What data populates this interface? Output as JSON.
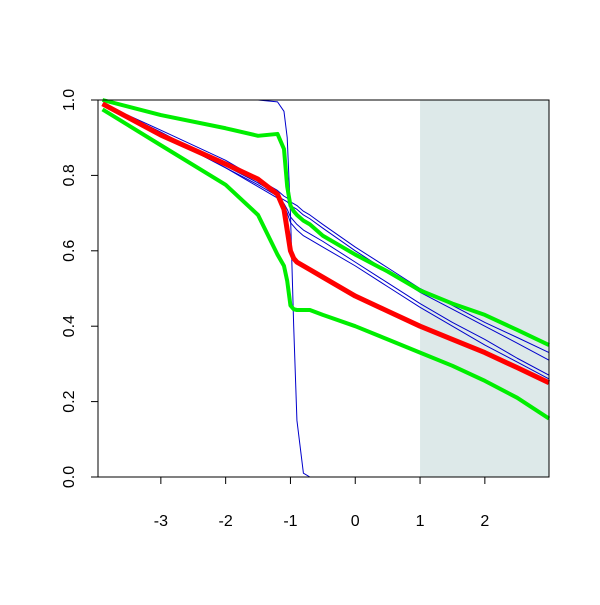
{
  "chart_data": {
    "type": "line",
    "x": [
      -3.9,
      -3,
      -2,
      -1.5,
      -1.2,
      -1.1,
      -1.05,
      -1,
      -0.95,
      -0.9,
      -0.8,
      -0.7,
      -0.5,
      0,
      0.5,
      1,
      1.5,
      2,
      2.5,
      2.99
    ],
    "series": [
      {
        "color": "#0000cc",
        "width": 1,
        "values": [
          1,
          1,
          1,
          1,
          0.995,
          0.97,
          0.9,
          0.7,
          0.4,
          0.15,
          0.01,
          0,
          0,
          0,
          0,
          0,
          0,
          0,
          0,
          0
        ]
      },
      {
        "color": "#0000cc",
        "width": 1,
        "values": [
          0.99,
          0.92,
          0.84,
          0.79,
          0.76,
          0.745,
          0.74,
          0.73,
          0.725,
          0.72,
          0.705,
          0.695,
          0.67,
          0.61,
          0.555,
          0.5,
          0.455,
          0.41,
          0.37,
          0.33
        ]
      },
      {
        "color": "#0000cc",
        "width": 1,
        "values": [
          0.99,
          0.91,
          0.82,
          0.775,
          0.745,
          0.735,
          0.73,
          0.72,
          0.715,
          0.71,
          0.695,
          0.685,
          0.66,
          0.6,
          0.545,
          0.49,
          0.445,
          0.4,
          0.355,
          0.31
        ]
      },
      {
        "color": "#0000cc",
        "width": 1,
        "values": [
          0.99,
          0.915,
          0.825,
          0.78,
          0.75,
          0.725,
          0.71,
          0.69,
          0.68,
          0.67,
          0.655,
          0.645,
          0.625,
          0.57,
          0.515,
          0.46,
          0.41,
          0.365,
          0.315,
          0.27
        ]
      },
      {
        "color": "#0000cc",
        "width": 1,
        "values": [
          0.99,
          0.91,
          0.82,
          0.77,
          0.74,
          0.72,
          0.7,
          0.675,
          0.665,
          0.655,
          0.64,
          0.63,
          0.61,
          0.56,
          0.505,
          0.45,
          0.4,
          0.35,
          0.305,
          0.26
        ]
      },
      {
        "color": "#00ee00",
        "width": 4,
        "values": [
          1,
          0.96,
          0.925,
          0.905,
          0.91,
          0.87,
          0.77,
          0.72,
          0.705,
          0.695,
          0.68,
          0.67,
          0.64,
          0.59,
          0.545,
          0.495,
          0.46,
          0.43,
          0.39,
          0.35
        ]
      },
      {
        "color": "#00ee00",
        "width": 4,
        "values": [
          0.975,
          0.88,
          0.775,
          0.695,
          0.59,
          0.56,
          0.52,
          0.455,
          0.445,
          0.443,
          0.443,
          0.443,
          0.43,
          0.4,
          0.365,
          0.33,
          0.295,
          0.255,
          0.21,
          0.155
        ]
      },
      {
        "color": "#ff0000",
        "width": 5,
        "values": [
          0.99,
          0.907,
          0.83,
          0.79,
          0.75,
          0.71,
          0.655,
          0.6,
          0.58,
          0.57,
          0.56,
          0.55,
          0.53,
          0.48,
          0.44,
          0.4,
          0.365,
          0.33,
          0.29,
          0.25
        ]
      }
    ],
    "shaded_xrange": [
      1,
      2.99
    ],
    "shade_color": "#dde9e9",
    "xlim": [
      -3.97,
      2.99
    ],
    "ylim": [
      0,
      1
    ],
    "xticks": [
      -3,
      -2,
      -1,
      0,
      1,
      2
    ],
    "yticks": [
      {
        "value": 0,
        "label": "0.0"
      },
      {
        "value": 0.2,
        "label": "0.2"
      },
      {
        "value": 0.4,
        "label": "0.4"
      },
      {
        "value": 0.6,
        "label": "0.6"
      },
      {
        "value": 0.8,
        "label": "0.8"
      },
      {
        "value": 1,
        "label": "1.0"
      }
    ]
  }
}
